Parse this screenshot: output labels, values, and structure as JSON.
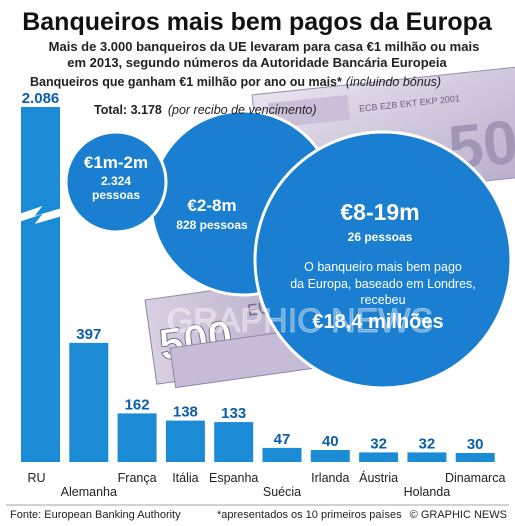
{
  "header": {
    "title": "Banqueiros mais bem pagos da Europa",
    "subtitle_line1": "Mais de 3.000 banqueiros da UE levaram para casa €1 milhão ou mais",
    "subtitle_line2": "em 2013, segundo números da Autoridade Bancária Europeia",
    "section_label": "Banqueiros que ganham €1 milhão por ano ou mais*",
    "section_note": "(incluindo bónus)"
  },
  "total": {
    "label": "Total: 3.178",
    "note": "(por recibo de vencimento)"
  },
  "bubbles": [
    {
      "range": "€1m-2m",
      "count": "2.324",
      "unit": "pessoas"
    },
    {
      "range": "€2-8m",
      "count": "828 pessoas"
    },
    {
      "range": "€8-19m",
      "count": "26 pessoas"
    }
  ],
  "top_earner": {
    "line1": "O banqueiro mais bem pago",
    "line2": "da Europa, baseado em Londres,",
    "line3": "recebeu",
    "amount": "€18,4 milhões"
  },
  "watermark": "GRAPHIC NEWS",
  "footer": {
    "source": "Fonte: European Banking Authority",
    "note": "*apresentados os 10 primeiros países",
    "credit": "© GRAPHIC NEWS"
  },
  "colors": {
    "bar": "#1b8bd6",
    "bubble": "#1a7fd0",
    "value_text": "#0b5ea8",
    "title_text": "#111111"
  },
  "chart_data": {
    "type": "bar",
    "title": "Banqueiros que ganham €1 milhão por ano ou mais*",
    "categories": [
      "RU",
      "Alemanha",
      "França",
      "Itália",
      "Espanha",
      "Suécia",
      "Irlanda",
      "Áustria",
      "Holanda",
      "Dinamarca"
    ],
    "values": [
      2086,
      397,
      162,
      138,
      133,
      47,
      40,
      32,
      32,
      30
    ],
    "value_labels": [
      "2.086",
      "397",
      "162",
      "138",
      "133",
      "47",
      "40",
      "32",
      "32",
      "30"
    ],
    "axis_break": "RU bar shown with broken axis",
    "xlabel": "",
    "ylabel": "",
    "grid": false,
    "legend": "none"
  }
}
